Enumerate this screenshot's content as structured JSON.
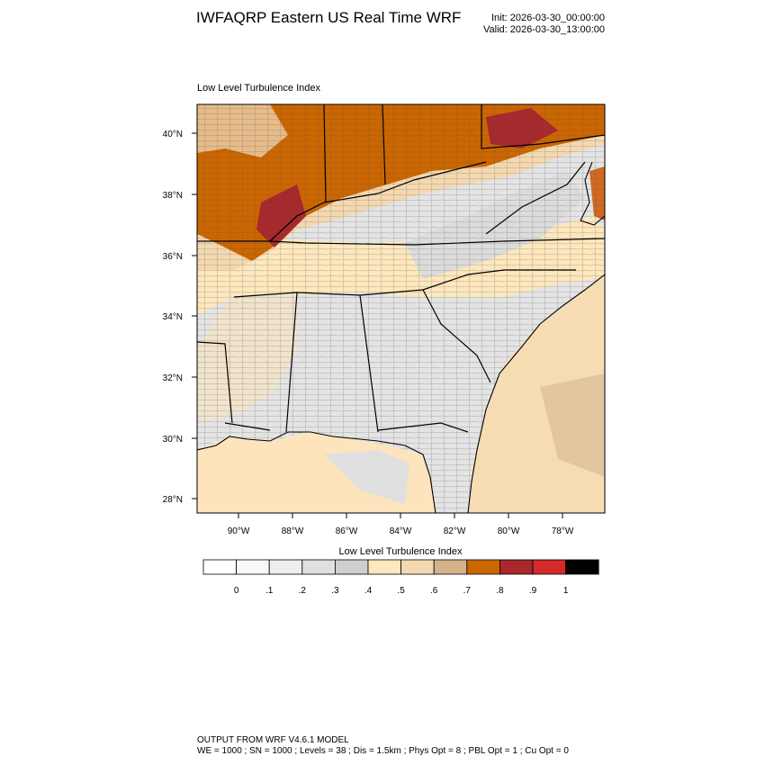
{
  "header": {
    "title": "IWFAQRP Eastern US Real Time WRF",
    "init": "Init: 2026-03-30_00:00:00",
    "valid": "Valid: 2026-03-30_13:00:00"
  },
  "map": {
    "title": "Low Level Turbulence Index",
    "lat_labels": [
      "40°N",
      "38°N",
      "36°N",
      "34°N",
      "32°N",
      "30°N",
      "28°N"
    ],
    "lon_labels": [
      "90°W",
      "88°W",
      "86°W",
      "84°W",
      "82°W",
      "80°W",
      "78°W"
    ]
  },
  "colorbar": {
    "title": "Low Level Turbulence Index",
    "labels": [
      "0",
      ".1",
      ".2",
      ".3",
      ".4",
      ".5",
      ".6",
      ".7",
      ".8",
      ".9",
      "1"
    ],
    "colors": [
      "#ffffff",
      "#f8f8f8",
      "#eeeeee",
      "#e0e0e0",
      "#cfcfcf",
      "#fde7bd",
      "#f4d9b0",
      "#d5b28a",
      "#cc6600",
      "#a8282c",
      "#d42a2a",
      "#000000"
    ]
  },
  "footer": {
    "line1": "OUTPUT FROM WRF V4.6.1 MODEL",
    "line2": "WE = 1000 ; SN = 1000 ; Levels = 38 ; Dis = 1.5km ; Phys Opt = 8 ; PBL Opt = 1 ; Cu Opt = 0"
  }
}
